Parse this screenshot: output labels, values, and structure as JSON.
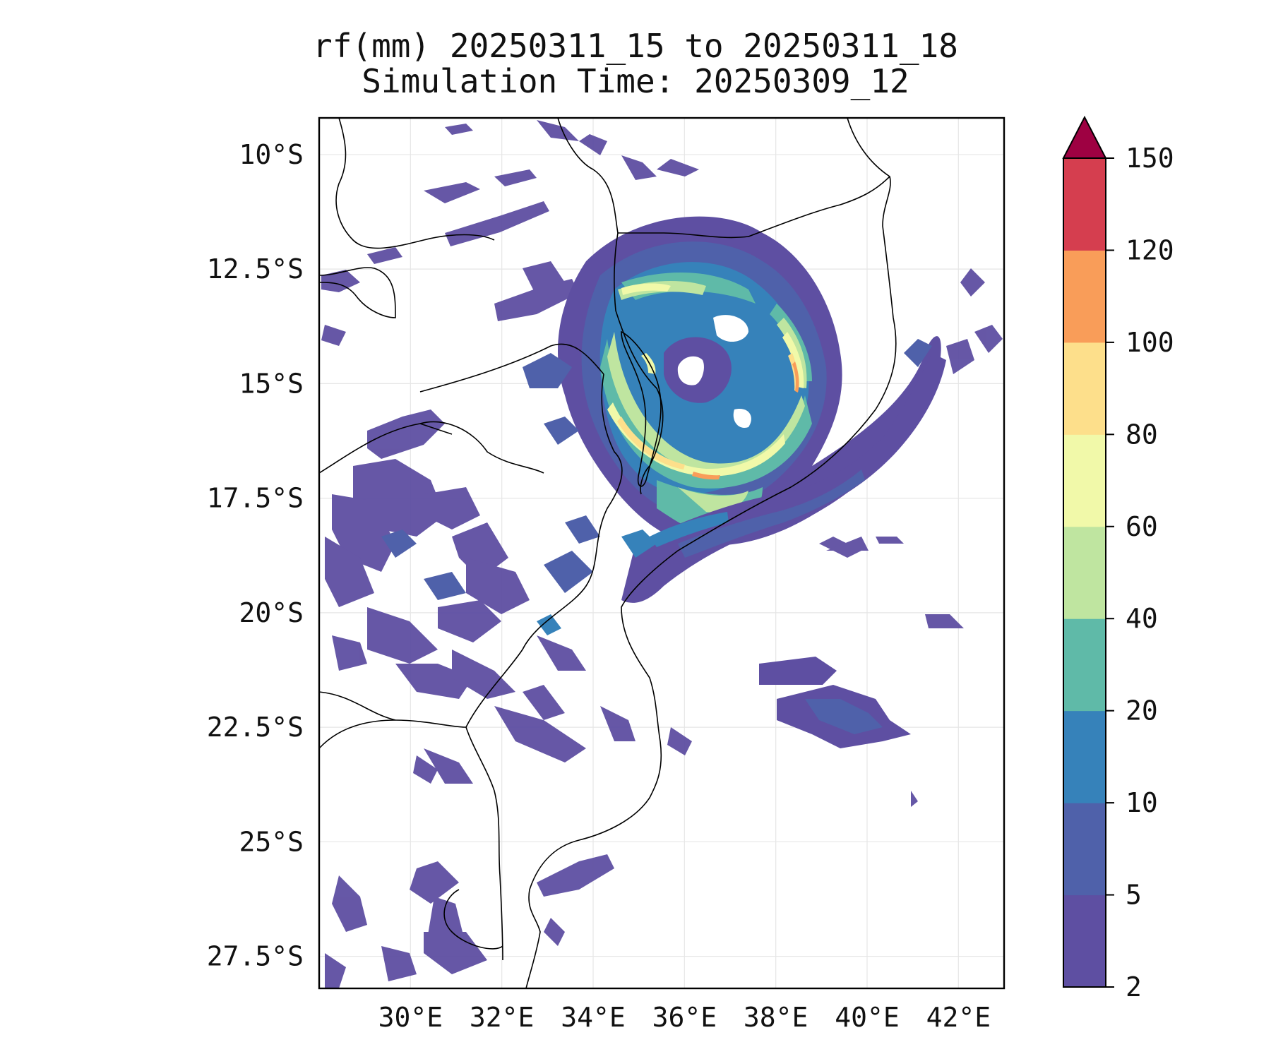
{
  "title": {
    "line1": "rf(mm) 20250311_15 to 20250311_18",
    "line2": "Simulation Time: 20250309_12"
  },
  "map": {
    "lon_range": [
      28,
      43
    ],
    "lat_range": [
      -28.2,
      -9.2
    ],
    "x_ticks": [
      {
        "value": 30,
        "label": "30°E"
      },
      {
        "value": 32,
        "label": "32°E"
      },
      {
        "value": 34,
        "label": "34°E"
      },
      {
        "value": 36,
        "label": "36°E"
      },
      {
        "value": 38,
        "label": "38°E"
      },
      {
        "value": 40,
        "label": "40°E"
      },
      {
        "value": 42,
        "label": "42°E"
      }
    ],
    "y_ticks": [
      {
        "value": -10,
        "label": "10°S"
      },
      {
        "value": -12.5,
        "label": "12.5°S"
      },
      {
        "value": -15,
        "label": "15°S"
      },
      {
        "value": -17.5,
        "label": "17.5°S"
      },
      {
        "value": -20,
        "label": "20°S"
      },
      {
        "value": -22.5,
        "label": "22.5°S"
      },
      {
        "value": -25,
        "label": "25°S"
      },
      {
        "value": -27.5,
        "label": "27.5°S"
      }
    ],
    "grid": true
  },
  "colorbar": {
    "levels": [
      2,
      5,
      10,
      20,
      40,
      60,
      80,
      100,
      120,
      150
    ],
    "labels": [
      "2",
      "5",
      "10",
      "20",
      "40",
      "60",
      "80",
      "100",
      "120",
      "150"
    ],
    "colors": [
      "#5e4fa2",
      "#4f61aa",
      "#3682ba",
      "#5fbaa8",
      "#bfe5a0",
      "#f1f9a9",
      "#fddf8b",
      "#f99d59",
      "#d53e4f"
    ],
    "extend_color": "#9e0142",
    "extend": "max"
  }
}
